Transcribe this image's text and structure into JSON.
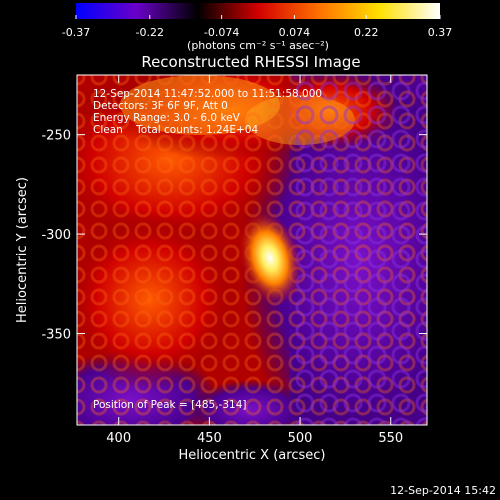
{
  "colorbar": {
    "tick_labels": [
      "-0.37",
      "-0.22",
      "-0.074",
      "0.074",
      "0.22",
      "0.37"
    ],
    "tick_values": [
      -0.37,
      -0.22,
      -0.074,
      0.074,
      0.22,
      0.37
    ],
    "range": [
      -0.37,
      0.37
    ],
    "unit_label": "(photons cm⁻² s⁻¹ asec⁻²)",
    "colors": [
      "#0000ff",
      "#6a00c8",
      "#000000",
      "#d20000",
      "#ff7000",
      "#ffe000",
      "#ffffff"
    ]
  },
  "plot": {
    "title": "Reconstructed RHESSI Image",
    "xlabel": "Heliocentric X (arcsec)",
    "ylabel": "Heliocentric Y (arcsec)",
    "x_ticks": [
      "400",
      "450",
      "500",
      "550"
    ],
    "x_tick_values": [
      400,
      450,
      500,
      550
    ],
    "y_ticks": [
      "-250",
      "-300",
      "-350"
    ],
    "y_tick_values": [
      -250,
      -300,
      -350
    ],
    "xlim": [
      377,
      570
    ],
    "ylim": [
      -396,
      -220
    ]
  },
  "info": {
    "line1": "12-Sep-2014 11:47:52.000 to 11:51:58.000",
    "line2": "Detectors: 3F 6F 9F, Att 0",
    "line3": "Energy Range: 3.0 - 6.0 keV",
    "line4": "Clean    Total counts: 1.24E+04",
    "peak": "Position of Peak = [485,-314]"
  },
  "footer": {
    "timestamp": "12-Sep-2014 15:42"
  },
  "image_data": {
    "peak_position": [
      485,
      -314
    ],
    "total_counts": "1.24E+04"
  }
}
